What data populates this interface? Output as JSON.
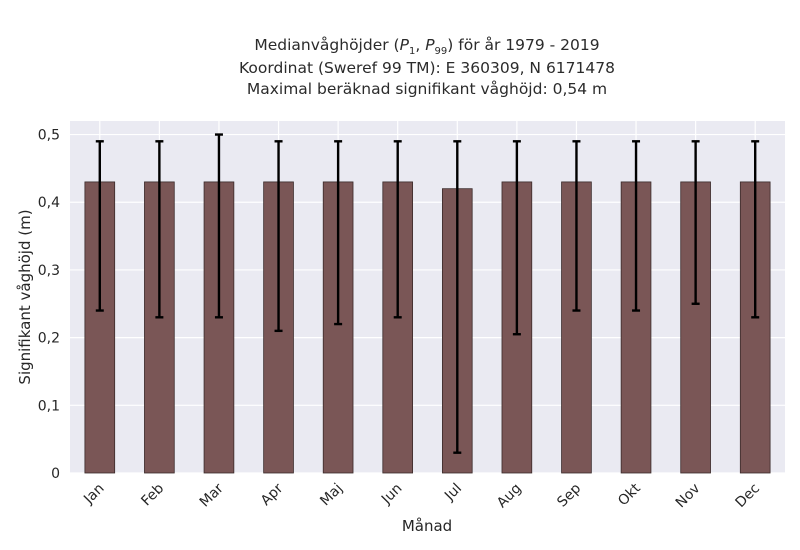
{
  "chart_data": {
    "type": "bar",
    "title": {
      "line1_prefix": "Medianvåghöjder (",
      "p1_symbol": "P",
      "p1_sub": "1",
      "separator": ", ",
      "p99_symbol": "P",
      "p99_sub": "99",
      "line1_suffix": ") för år 1979 - 2019",
      "line2": "Koordinat (Sweref 99 TM): E 360309, N 6171478",
      "line3": "Maximal beräknad signifikant våghöjd: 0,54 m"
    },
    "xlabel": "Månad",
    "ylabel": "Signifikant våghöjd (m)",
    "categories": [
      "Jan",
      "Feb",
      "Mar",
      "Apr",
      "Maj",
      "Jun",
      "Jul",
      "Aug",
      "Sep",
      "Okt",
      "Nov",
      "Dec"
    ],
    "values": [
      0.43,
      0.43,
      0.43,
      0.43,
      0.43,
      0.43,
      0.42,
      0.43,
      0.43,
      0.43,
      0.43,
      0.43
    ],
    "error_low": [
      0.24,
      0.23,
      0.23,
      0.21,
      0.22,
      0.23,
      0.03,
      0.205,
      0.24,
      0.24,
      0.25,
      0.23
    ],
    "error_high": [
      0.49,
      0.49,
      0.5,
      0.49,
      0.49,
      0.49,
      0.49,
      0.49,
      0.49,
      0.49,
      0.49,
      0.49
    ],
    "ylim": [
      0,
      0.52
    ],
    "yticks": [
      0,
      0.1,
      0.2,
      0.3,
      0.4,
      0.5
    ],
    "ytick_labels": [
      "0",
      "0,1",
      "0,2",
      "0,3",
      "0,4",
      "0,5"
    ],
    "grid": true,
    "colors": {
      "bar": "#7a5656",
      "bar_edge": "#3a2a2a",
      "error": "#000000",
      "plot_bg": "#eaeaf2",
      "grid": "#ffffff"
    }
  }
}
